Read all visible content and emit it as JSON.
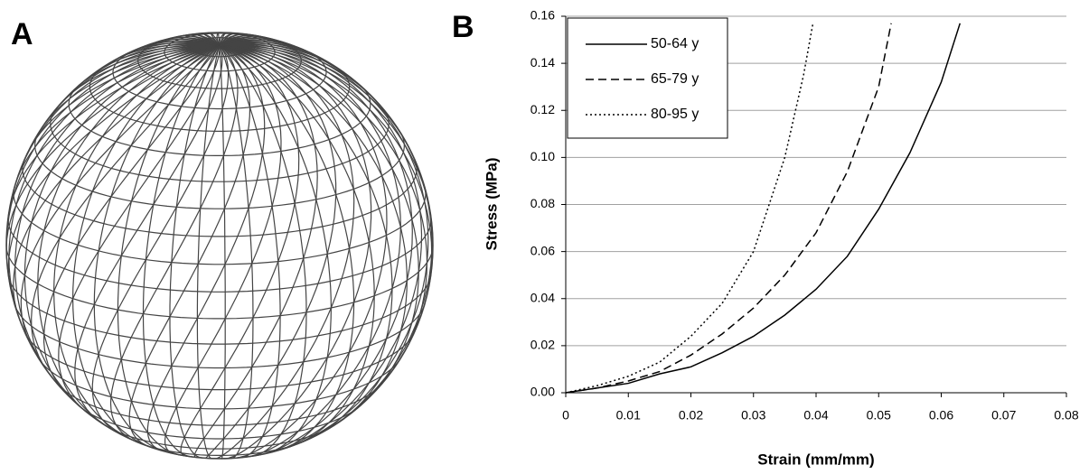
{
  "panel_labels": [
    "A",
    "B"
  ],
  "chart_data": {
    "type": "line",
    "xlabel": "Strain (mm/mm)",
    "ylabel": "Stress (MPa)",
    "xlim": [
      0,
      0.08
    ],
    "xticks": [
      0,
      0.01,
      0.02,
      0.03,
      0.04,
      0.05,
      0.06,
      0.07,
      0.08
    ],
    "ylim": [
      0,
      0.16
    ],
    "yticks": [
      {
        "value": 0,
        "label": "0.00"
      },
      0.02,
      0.04,
      0.06,
      0.08,
      {
        "value": 0.1,
        "label": "0.10"
      },
      0.12,
      0.14,
      0.16
    ],
    "grid": true,
    "legend": "top-left",
    "series": [
      {
        "name": "50-64 y",
        "color": "#000000",
        "dash": "solid",
        "x": [
          0,
          0.005,
          0.01,
          0.015,
          0.02,
          0.025,
          0.03,
          0.035,
          0.04,
          0.045,
          0.05,
          0.055,
          0.06,
          0.063
        ],
        "values": [
          0,
          0.002,
          0.004,
          0.008,
          0.011,
          0.017,
          0.024,
          0.033,
          0.044,
          0.058,
          0.078,
          0.102,
          0.132,
          0.157
        ]
      },
      {
        "name": "65-79 y",
        "color": "#000000",
        "dash": "dashed",
        "x": [
          0,
          0.005,
          0.01,
          0.015,
          0.02,
          0.025,
          0.03,
          0.035,
          0.04,
          0.045,
          0.05,
          0.052
        ],
        "values": [
          0,
          0.002,
          0.005,
          0.009,
          0.016,
          0.025,
          0.036,
          0.05,
          0.068,
          0.094,
          0.13,
          0.157
        ]
      },
      {
        "name": "80-95 y",
        "color": "#000000",
        "dash": "dotted",
        "x": [
          0,
          0.005,
          0.01,
          0.015,
          0.02,
          0.025,
          0.03,
          0.035,
          0.038,
          0.0395
        ],
        "values": [
          0,
          0.003,
          0.007,
          0.013,
          0.024,
          0.038,
          0.06,
          0.1,
          0.135,
          0.157
        ]
      }
    ]
  }
}
